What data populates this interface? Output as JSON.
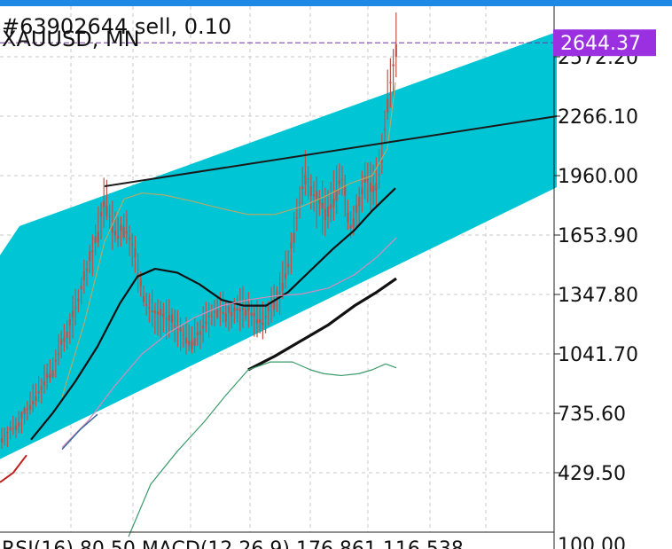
{
  "header": {
    "order_label": "#63902644 sell, 0.10",
    "symbol_label": "XAUUSD, MN"
  },
  "footer": {
    "indicator_label": "RSI(16) 80.50 MACD(12,26,9) 176.861 116.538",
    "rsi_top_value": "100.00"
  },
  "colors": {
    "channel_fill": "#00c5d5",
    "candle": "#c0524a",
    "ma_black": "#111111",
    "ma_pink": "#d98ab8",
    "ma_olive": "#b5a86a",
    "ma_green": "#3a9a6a",
    "ma_blue": "#3a6aa0",
    "ma_red": "#c0201a",
    "price_tag": "#9b30e0",
    "grid": "#c8c8c8"
  },
  "chart_data": {
    "type": "candlestick",
    "symbol": "XAUUSD",
    "timeframe": "MN",
    "current_price": "2644.37",
    "y_ticks": [
      "2572.20",
      "2266.10",
      "1960.00",
      "1653.90",
      "1347.80",
      "1041.70",
      "735.60",
      "429.50"
    ],
    "y_tick_values": [
      2572.2,
      2266.1,
      1960.0,
      1653.9,
      1347.8,
      1041.7,
      735.6,
      429.5
    ],
    "grid": true,
    "channel": {
      "upper": [
        [
          0,
          1550
        ],
        [
          22,
          1700
        ],
        [
          628,
          2700
        ]
      ],
      "lower": [
        [
          0,
          500
        ],
        [
          628,
          1900
        ]
      ]
    },
    "trendline": [
      [
        118,
        1905
      ],
      [
        628,
        2266
      ]
    ],
    "series": [
      {
        "key": "close",
        "color_key": "candle",
        "points": [
          [
            0,
            600
          ],
          [
            20,
            680
          ],
          [
            40,
            820
          ],
          [
            50,
            900
          ],
          [
            60,
            960
          ],
          [
            70,
            1100
          ],
          [
            80,
            1200
          ],
          [
            90,
            1350
          ],
          [
            100,
            1500
          ],
          [
            110,
            1650
          ],
          [
            118,
            1850
          ],
          [
            125,
            1720
          ],
          [
            133,
            1650
          ],
          [
            140,
            1700
          ],
          [
            150,
            1600
          ],
          [
            157,
            1420
          ],
          [
            165,
            1290
          ],
          [
            175,
            1250
          ],
          [
            185,
            1230
          ],
          [
            195,
            1200
          ],
          [
            205,
            1150
          ],
          [
            215,
            1100
          ],
          [
            225,
            1150
          ],
          [
            235,
            1230
          ],
          [
            245,
            1270
          ],
          [
            255,
            1250
          ],
          [
            265,
            1260
          ],
          [
            275,
            1280
          ],
          [
            285,
            1250
          ],
          [
            295,
            1190
          ],
          [
            305,
            1280
          ],
          [
            315,
            1350
          ],
          [
            325,
            1500
          ],
          [
            335,
            1750
          ],
          [
            345,
            1980
          ],
          [
            355,
            1850
          ],
          [
            365,
            1780
          ],
          [
            375,
            1820
          ],
          [
            385,
            1970
          ],
          [
            395,
            1700
          ],
          [
            405,
            1800
          ],
          [
            413,
            1950
          ],
          [
            423,
            1900
          ],
          [
            430,
            2000
          ],
          [
            437,
            2350
          ],
          [
            441,
            2450
          ],
          [
            447,
            2644
          ]
        ]
      },
      {
        "key": "ma_black",
        "color_key": "ma_black",
        "points": [
          [
            35,
            600
          ],
          [
            60,
            740
          ],
          [
            85,
            900
          ],
          [
            110,
            1080
          ],
          [
            135,
            1300
          ],
          [
            155,
            1440
          ],
          [
            175,
            1480
          ],
          [
            200,
            1460
          ],
          [
            225,
            1400
          ],
          [
            250,
            1320
          ],
          [
            275,
            1290
          ],
          [
            300,
            1290
          ],
          [
            325,
            1360
          ],
          [
            350,
            1470
          ],
          [
            375,
            1580
          ],
          [
            400,
            1680
          ],
          [
            420,
            1780
          ],
          [
            446,
            1895
          ]
        ]
      },
      {
        "key": "ma_olive",
        "color_key": "ma_olive",
        "points": [
          [
            70,
            820
          ],
          [
            95,
            1200
          ],
          [
            118,
            1620
          ],
          [
            140,
            1840
          ],
          [
            160,
            1870
          ],
          [
            185,
            1860
          ],
          [
            215,
            1830
          ],
          [
            250,
            1790
          ],
          [
            280,
            1760
          ],
          [
            310,
            1760
          ],
          [
            340,
            1800
          ],
          [
            370,
            1860
          ],
          [
            395,
            1920
          ],
          [
            420,
            1960
          ],
          [
            437,
            2100
          ],
          [
            446,
            2440
          ]
        ]
      },
      {
        "key": "ma_pink",
        "color_key": "ma_pink",
        "points": [
          [
            70,
            560
          ],
          [
            100,
            700
          ],
          [
            130,
            880
          ],
          [
            160,
            1040
          ],
          [
            190,
            1150
          ],
          [
            220,
            1230
          ],
          [
            250,
            1290
          ],
          [
            280,
            1320
          ],
          [
            310,
            1340
          ],
          [
            340,
            1350
          ],
          [
            370,
            1380
          ],
          [
            400,
            1450
          ],
          [
            425,
            1540
          ],
          [
            447,
            1640
          ]
        ]
      },
      {
        "key": "ma_thick",
        "color_key": "ma_black",
        "points": [
          [
            280,
            960
          ],
          [
            310,
            1030
          ],
          [
            340,
            1110
          ],
          [
            370,
            1190
          ],
          [
            400,
            1290
          ],
          [
            425,
            1360
          ],
          [
            447,
            1430
          ]
        ]
      },
      {
        "key": "rsi",
        "color_key": "ma_green",
        "points": [
          [
            145,
            100
          ],
          [
            170,
            370
          ],
          [
            200,
            540
          ],
          [
            230,
            690
          ],
          [
            255,
            830
          ],
          [
            280,
            960
          ],
          [
            305,
            1000
          ],
          [
            330,
            1000
          ],
          [
            350,
            960
          ],
          [
            365,
            940
          ],
          [
            385,
            930
          ],
          [
            405,
            940
          ],
          [
            420,
            960
          ],
          [
            435,
            990
          ],
          [
            447,
            970
          ]
        ]
      },
      {
        "key": "ma_blue",
        "color_key": "ma_blue",
        "points": [
          [
            70,
            550
          ],
          [
            90,
            650
          ],
          [
            110,
            730
          ]
        ]
      },
      {
        "key": "ma_red",
        "color_key": "ma_red",
        "points": [
          [
            0,
            380
          ],
          [
            15,
            430
          ],
          [
            30,
            520
          ]
        ]
      }
    ]
  }
}
